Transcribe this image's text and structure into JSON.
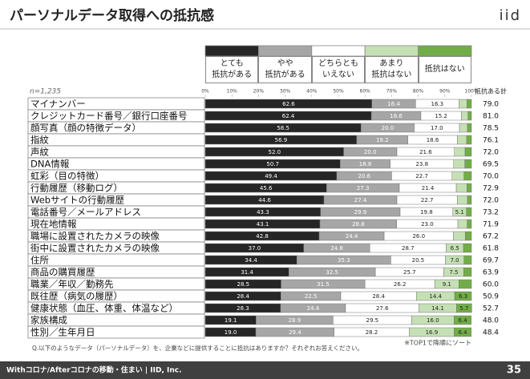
{
  "header": {
    "title": "パーソナルデータ取得への抵抗感",
    "logo": "iid"
  },
  "chart_data": {
    "type": "stacked-bar-horizontal",
    "n_label": "n=1,235",
    "note": "※TOP1で降順にソート",
    "question": "Q.以下のようなデータ（パーソナルデータ）を、企業などに提供することに抵抗はありますか？それぞれお答えください。",
    "categories": [
      "マイナンバー",
      "クレジットカード番号／銀行口座番号",
      "顔写真（顔の特徴データ）",
      "指紋",
      "声紋",
      "DNA情報",
      "虹彩（目の特徴）",
      "行動履歴（移動ログ）",
      "Webサイトの行動履歴",
      "電話番号／メールアドレス",
      "現在地情報",
      "職場に設置されたカメラの映像",
      "街中に設置されたカメラの映像",
      "住所",
      "商品の購買履歴",
      "職業／年収／勤務先",
      "既往歴（病気の履歴）",
      "健康状態（血圧、体重、体温など）",
      "家族構成",
      "性別／生年月日"
    ],
    "series": [
      {
        "name": "とても\n抵抗がある",
        "color": "#262626",
        "label_color": "#ffffff",
        "values": [
          62.6,
          62.4,
          58.5,
          56.9,
          52.0,
          50.7,
          49.4,
          45.6,
          44.6,
          43.3,
          43.1,
          42.8,
          37.0,
          34.4,
          31.4,
          28.5,
          28.4,
          28.3,
          19.1,
          19.0
        ],
        "value_labels": [
          "62.6",
          "62.4",
          "58.5",
          "56.9",
          "52.0",
          "50.7",
          "49.4",
          "45.6",
          "44.6",
          "43.3",
          "43.1",
          "42.8",
          "37.0",
          "34.4",
          "31.4",
          "28.5",
          "28.4",
          "28.3",
          "19.1",
          "19.0"
        ]
      },
      {
        "name": "やや\n抵抗がある",
        "color": "#a6a6a6",
        "label_color": "#ffffff",
        "values": [
          16.4,
          18.6,
          20.0,
          19.2,
          20.0,
          18.8,
          20.6,
          27.3,
          27.4,
          29.9,
          28.8,
          24.4,
          24.8,
          35.3,
          32.5,
          31.5,
          22.5,
          24.4,
          28.9,
          29.4
        ],
        "value_labels": [
          "16.4",
          "18.6",
          "20.0",
          "19.2",
          "20.0",
          "18.8",
          "20.6",
          "27.3",
          "27.4",
          "29.9",
          "28.8",
          "24.4",
          "24.8",
          "35.3",
          "32.5",
          "31.5",
          "22.5",
          "24.4",
          "28.9",
          "29.4"
        ]
      },
      {
        "name": "どちらとも\nいえない",
        "color": "#ffffff",
        "label_color": "#222222",
        "values": [
          16.3,
          15.2,
          17.0,
          18.6,
          21.6,
          23.8,
          22.7,
          21.4,
          22.7,
          19.8,
          23.0,
          26.0,
          28.7,
          20.5,
          25.7,
          26.2,
          28.4,
          27.6,
          29.5,
          28.2
        ],
        "value_labels": [
          "16.3",
          "15.2",
          "17.0",
          "18.6",
          "21.6",
          "23.8",
          "22.7",
          "21.4",
          "22.7",
          "19.8",
          "23.0",
          "26.0",
          "28.7",
          "20.5",
          "25.7",
          "26.2",
          "28.4",
          "27.6",
          "29.5",
          "28.2"
        ]
      },
      {
        "name": "あまり\n抵抗はない",
        "color": "#c5e0b4",
        "label_color": "#222222",
        "values": [
          3.0,
          2.5,
          3.0,
          3.5,
          4.0,
          4.2,
          4.5,
          4.0,
          3.8,
          5.1,
          3.5,
          4.5,
          6.5,
          7.0,
          7.5,
          9.1,
          14.4,
          14.1,
          16.0,
          16.9
        ],
        "value_labels": [
          null,
          null,
          null,
          null,
          null,
          null,
          null,
          null,
          null,
          "5.1",
          null,
          null,
          "6.5",
          "7.0",
          "7.5",
          "9.1",
          "14.4",
          "14.1",
          "16.0",
          "16.9"
        ]
      },
      {
        "name": "抵抗はない",
        "color": "#70ad47",
        "label_color": "#222222",
        "values": [
          1.7,
          1.3,
          1.5,
          1.8,
          2.4,
          2.5,
          2.8,
          1.7,
          1.5,
          1.9,
          1.6,
          2.3,
          3.0,
          2.8,
          2.9,
          4.7,
          6.3,
          5.7,
          6.4,
          6.4
        ],
        "value_labels": [
          null,
          null,
          null,
          null,
          null,
          null,
          null,
          null,
          null,
          null,
          null,
          null,
          null,
          null,
          null,
          null,
          "6.3",
          "5.7",
          "6.4",
          "6.4"
        ]
      }
    ],
    "totals": {
      "name": "抵抗ある計",
      "values": [
        79.0,
        81.0,
        78.5,
        76.1,
        72.0,
        69.5,
        70.0,
        72.9,
        72.0,
        73.2,
        71.9,
        67.2,
        61.8,
        69.7,
        63.9,
        60.0,
        50.9,
        52.7,
        48.0,
        48.4
      ],
      "value_labels": [
        "79.0",
        "81.0",
        "78.5",
        "76.1",
        "72.0",
        "69.5",
        "70.0",
        "72.9",
        "72.0",
        "73.2",
        "71.9",
        "67.2",
        "61.8",
        "69.7",
        "63.9",
        "60.0",
        "50.9",
        "52.7",
        "48.0",
        "48.4"
      ]
    },
    "xlim": [
      0,
      100
    ],
    "xticks": [
      {
        "value": 0,
        "label": "0%"
      },
      {
        "value": 10,
        "label": "10%"
      },
      {
        "value": 20,
        "label": "20%"
      },
      {
        "value": 30,
        "label": "30%"
      },
      {
        "value": 40,
        "label": "40%"
      },
      {
        "value": 50,
        "label": "50%"
      },
      {
        "value": 60,
        "label": "60%"
      },
      {
        "value": 70,
        "label": "70%"
      },
      {
        "value": 80,
        "label": "80%"
      },
      {
        "value": 90,
        "label": "90%"
      },
      {
        "value": 100,
        "label": "100%"
      }
    ]
  },
  "footer": {
    "text": "Withコロナ/Afterコロナの移動・住まい | IID, Inc.",
    "page": "35"
  }
}
